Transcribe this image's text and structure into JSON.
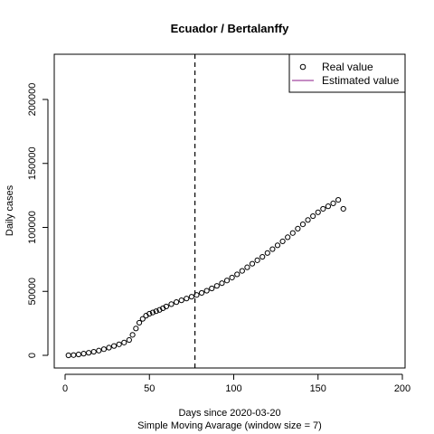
{
  "chart_data": {
    "type": "scatter",
    "title": "Ecuador / Bertalanffy",
    "xlabel": "Days since 2020-03-20",
    "subxlabel": "Simple Moving Avarage (window size = 7)",
    "ylabel": "Daily cases",
    "xlim": [
      0,
      200
    ],
    "ylim": [
      0,
      230000
    ],
    "x_ticks": [
      0,
      50,
      100,
      150,
      200
    ],
    "y_ticks": [
      0,
      50000,
      100000,
      150000,
      200000
    ],
    "vline_x": 77,
    "legend": {
      "position": "top-right",
      "entries": [
        {
          "label": "Real value",
          "symbol": "circle",
          "color": "#000000"
        },
        {
          "label": "Estimated value",
          "symbol": "line",
          "color": "#8B1A89"
        }
      ]
    },
    "series": [
      {
        "name": "Real value",
        "x": [
          2,
          5,
          8,
          11,
          14,
          17,
          20,
          23,
          26,
          29,
          32,
          35,
          38,
          40,
          42,
          44,
          46,
          48,
          50,
          52,
          54,
          56,
          58,
          60,
          63,
          66,
          69,
          72,
          75,
          78,
          81,
          84,
          87,
          90,
          93,
          96,
          99,
          102,
          105,
          108,
          111,
          114,
          117,
          120,
          123,
          126,
          129,
          132,
          135,
          138,
          141,
          144,
          147,
          150,
          153,
          156,
          159,
          162,
          165
        ],
        "y": [
          0,
          200,
          700,
          1300,
          2000,
          2800,
          3700,
          4800,
          6000,
          7300,
          8600,
          10000,
          12000,
          16000,
          21000,
          25500,
          28500,
          31000,
          32500,
          33500,
          34500,
          35500,
          36800,
          38200,
          40000,
          41600,
          43000,
          44400,
          45800,
          47200,
          48800,
          50500,
          52300,
          54300,
          56400,
          58500,
          60800,
          63300,
          66000,
          68800,
          71600,
          74300,
          77000,
          80000,
          83000,
          86000,
          89100,
          92300,
          95600,
          99000,
          102400,
          105800,
          108800,
          111800,
          114500,
          116500,
          118800,
          121500,
          114500
        ]
      }
    ]
  }
}
